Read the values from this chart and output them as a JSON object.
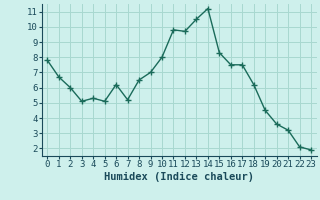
{
  "x": [
    0,
    1,
    2,
    3,
    4,
    5,
    6,
    7,
    8,
    9,
    10,
    11,
    12,
    13,
    14,
    15,
    16,
    17,
    18,
    19,
    20,
    21,
    22,
    23
  ],
  "y": [
    7.8,
    6.7,
    6.0,
    5.1,
    5.3,
    5.1,
    6.2,
    5.2,
    6.5,
    7.0,
    8.0,
    9.8,
    9.7,
    10.5,
    11.2,
    8.3,
    7.5,
    7.5,
    6.2,
    4.5,
    3.6,
    3.2,
    2.1,
    1.9
  ],
  "line_color": "#1a6b5a",
  "marker": "+",
  "marker_size": 4,
  "bg_color": "#cef0ec",
  "grid_color": "#a8d8d0",
  "xlabel": "Humidex (Indice chaleur)",
  "tick_color": "#1a4a5a",
  "xlim": [
    -0.5,
    23.5
  ],
  "ylim": [
    1.5,
    11.5
  ],
  "yticks": [
    2,
    3,
    4,
    5,
    6,
    7,
    8,
    9,
    10,
    11
  ],
  "xticks": [
    0,
    1,
    2,
    3,
    4,
    5,
    6,
    7,
    8,
    9,
    10,
    11,
    12,
    13,
    14,
    15,
    16,
    17,
    18,
    19,
    20,
    21,
    22,
    23
  ],
  "line_width": 1.0,
  "font_size": 6.5,
  "xlabel_fontsize": 7.5
}
